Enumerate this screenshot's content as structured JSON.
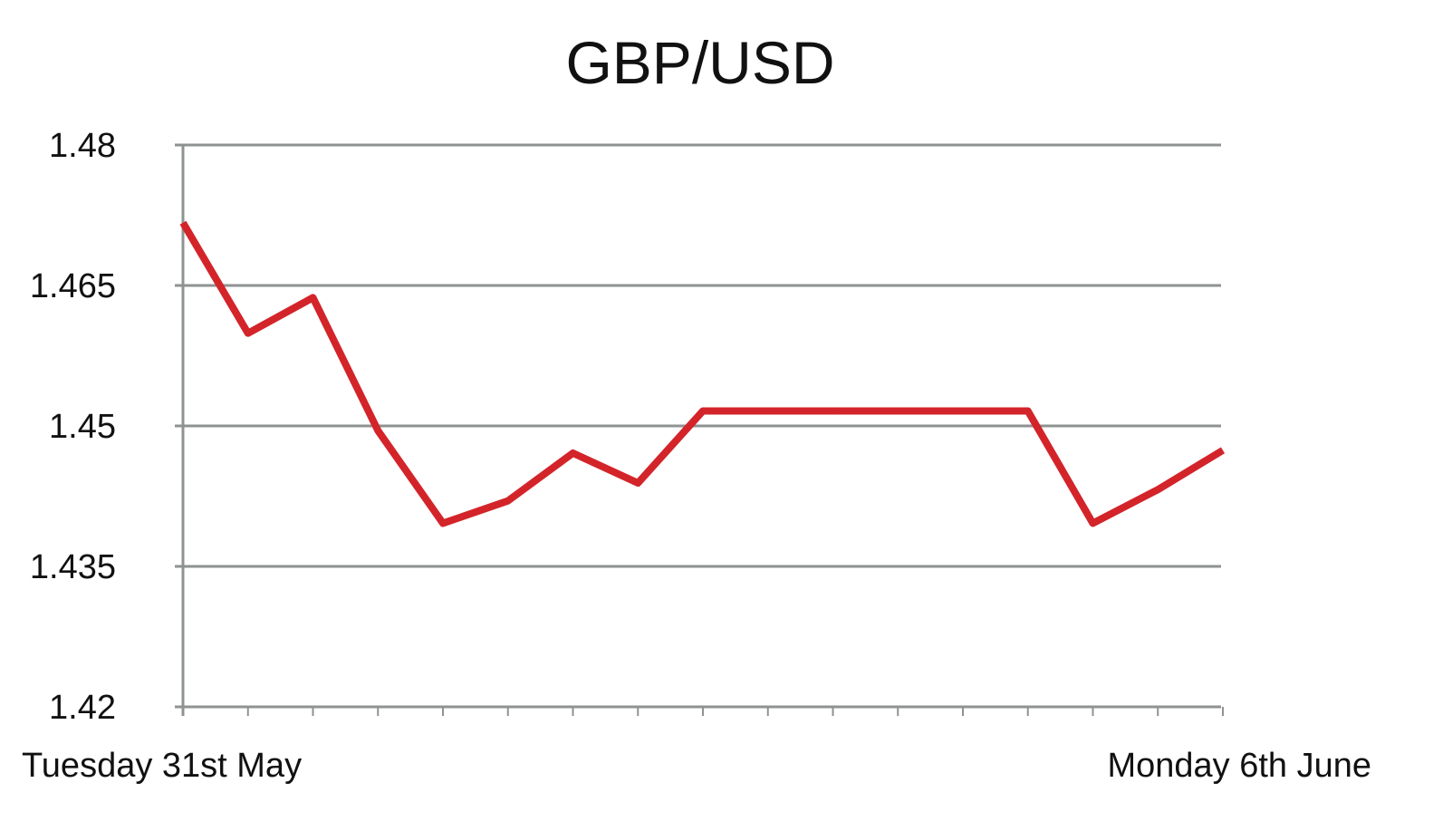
{
  "chart_data": {
    "type": "line",
    "title": "GBP/USD",
    "xlabel": "",
    "ylabel": "",
    "x_tick_labels": [
      "Tuesday 31st May",
      "Monday 6th June"
    ],
    "y_ticks": [
      1.42,
      1.435,
      1.45,
      1.465,
      1.48
    ],
    "y_tick_labels": [
      "1.42",
      "1.435",
      "1.45",
      "1.465",
      "1.48"
    ],
    "ylim": [
      1.42,
      1.48
    ],
    "grid": "horizontal",
    "legend": "none",
    "series": [
      {
        "color": "#d3242a",
        "values": [
          1.4717,
          1.4599,
          1.4637,
          1.4495,
          1.4396,
          1.442,
          1.4471,
          1.4439,
          1.4516,
          1.4516,
          1.4516,
          1.4516,
          1.4516,
          1.4516,
          1.4396,
          1.4432,
          1.4474
        ]
      }
    ],
    "colors": {
      "grid": "#8e9291",
      "line": "#d3242a"
    }
  }
}
